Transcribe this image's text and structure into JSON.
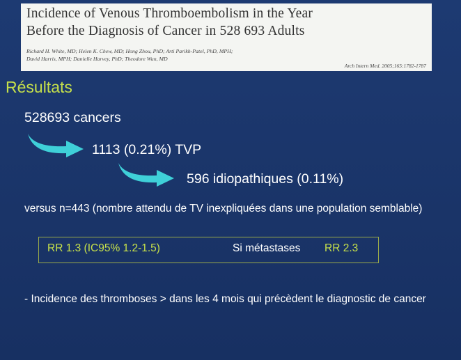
{
  "header": {
    "title_lines": [
      "Incidence of Venous Thromboembolism in the Year",
      "Before the Diagnosis of Cancer in 528 693 Adults"
    ],
    "authors": [
      "Richard H. White, MD; Helen K. Chew, MD; Hong Zhou, PhD; Arti Parikh-Patel, PhD, MPH;",
      "David Harris, MPH; Danielle Harvey, PhD; Theodore Wun, MD"
    ],
    "citation": "Arch Intern Med. 2005;165:1782-1787"
  },
  "section_title": "Résultats",
  "flow": [
    "528693 cancers",
    "1113 (0.21%) TVP",
    "596 idiopathiques (0.11%)"
  ],
  "versus": "versus n=443  (nombre attendu de TV inexpliquées dans une population semblable)",
  "box": {
    "rr": "RR 1.3 (IC95% 1.2-1.5)",
    "metastases_label": "Si métastases",
    "metastases_rr": "RR 2.3"
  },
  "note": "- Incidence des thromboses > dans les 4 mois qui précèdent le diagnostic de cancer"
}
